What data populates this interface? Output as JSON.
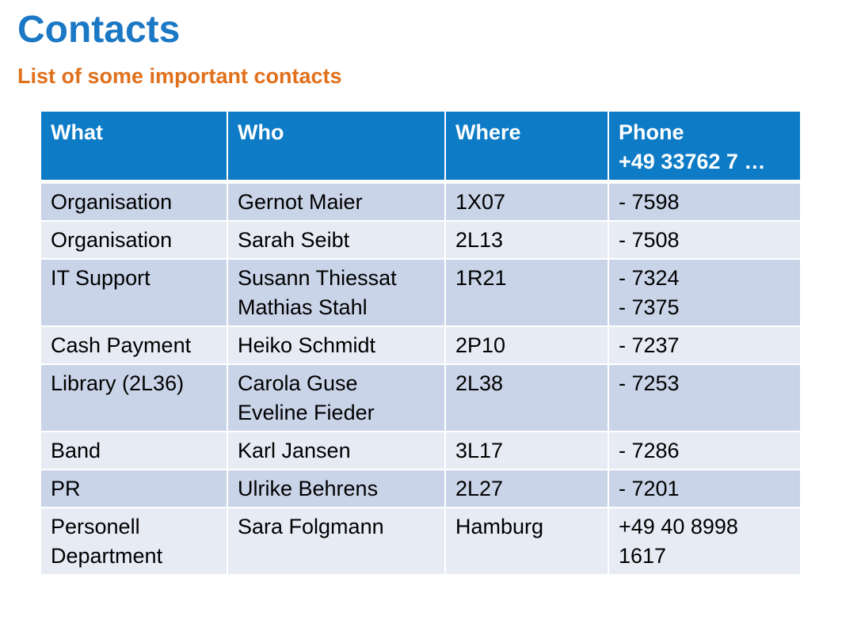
{
  "title": "Contacts",
  "subtitle": "List of some important contacts",
  "table": {
    "headers": {
      "what": "What",
      "who": "Who",
      "where": "Where",
      "phone_line1": "Phone",
      "phone_line2": "+49 33762 7 …"
    },
    "rows": [
      {
        "what": [
          "Organisation"
        ],
        "who": [
          "Gernot Maier"
        ],
        "where": [
          "1X07"
        ],
        "phone": [
          "- 7598"
        ]
      },
      {
        "what": [
          "Organisation"
        ],
        "who": [
          "Sarah Seibt"
        ],
        "where": [
          "2L13"
        ],
        "phone": [
          "- 7508"
        ]
      },
      {
        "what": [
          "IT Support"
        ],
        "who": [
          "Susann Thiessat",
          "Mathias Stahl"
        ],
        "where": [
          "1R21"
        ],
        "phone": [
          "- 7324",
          "- 7375"
        ]
      },
      {
        "what": [
          "Cash Payment"
        ],
        "who": [
          "Heiko Schmidt"
        ],
        "where": [
          "2P10"
        ],
        "phone": [
          "- 7237"
        ]
      },
      {
        "what": [
          "Library (2L36)"
        ],
        "who": [
          "Carola Guse",
          "Eveline Fieder"
        ],
        "where": [
          "2L38"
        ],
        "phone": [
          "- 7253"
        ]
      },
      {
        "what": [
          "Band"
        ],
        "who": [
          "Karl Jansen"
        ],
        "where": [
          "3L17"
        ],
        "phone": [
          "- 7286"
        ]
      },
      {
        "what": [
          "PR"
        ],
        "who": [
          "Ulrike Behrens"
        ],
        "where": [
          "2L27"
        ],
        "phone": [
          "- 7201"
        ]
      },
      {
        "what": [
          "Personell",
          "Department"
        ],
        "who": [
          "Sara Folgmann"
        ],
        "where": [
          "Hamburg"
        ],
        "phone": [
          "+49 40 8998",
          "1617"
        ]
      }
    ]
  },
  "colors": {
    "title": "#1b78c4",
    "subtitle": "#e0701b",
    "header_bg": "#0d7bc6",
    "row_odd": "#cad4e8",
    "row_even": "#e7ebf4"
  }
}
